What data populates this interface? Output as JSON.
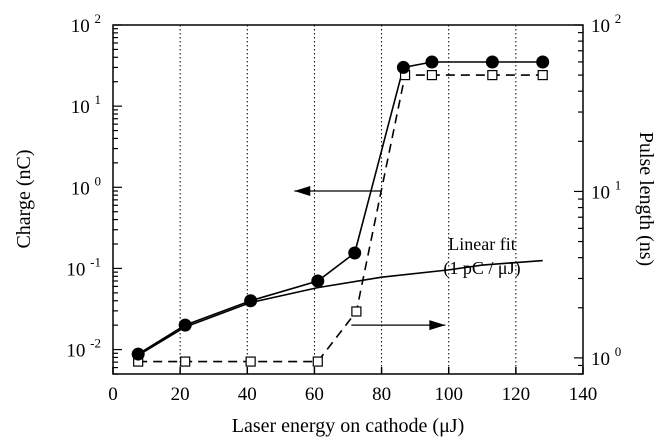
{
  "chart_data": {
    "type": "scatter",
    "title": "",
    "xlabel": "Laser energy on cathode (μJ)",
    "ylabel": "Charge (nC)",
    "y2label": "Pulse length (ns)",
    "xlim": [
      0,
      140
    ],
    "ylim": [
      0.005,
      100
    ],
    "yscale": "log",
    "y2lim": [
      0.8,
      100
    ],
    "y2scale": "log",
    "grid": "vertical dotted lines at x = 20, 40, 60, 80, 100, 120",
    "xticks": [
      "0",
      "20",
      "40",
      "60",
      "80",
      "100",
      "120",
      "140"
    ],
    "yticks": [
      {
        "base": "10",
        "exp": "-2"
      },
      {
        "base": "10",
        "exp": "-1"
      },
      {
        "base": "10",
        "exp": "0"
      },
      {
        "base": "10",
        "exp": "1"
      },
      {
        "base": "10",
        "exp": "2"
      }
    ],
    "y2ticks": [
      {
        "base": "10",
        "exp": "0"
      },
      {
        "base": "10",
        "exp": "1"
      },
      {
        "base": "10",
        "exp": "2"
      }
    ],
    "series": [
      {
        "axis": "left",
        "marker": "filled-circle",
        "line": "solid",
        "x": [
          7.5,
          21.5,
          41,
          61,
          72,
          86.5,
          95,
          113,
          128
        ],
        "y": [
          0.0088,
          0.02,
          0.04,
          0.07,
          0.155,
          30,
          35,
          35,
          35
        ]
      },
      {
        "axis": "right",
        "marker": "open-square",
        "line": "dashed",
        "x": [
          7.5,
          21.5,
          41,
          61,
          72.5,
          87,
          95,
          113,
          128
        ],
        "y": [
          0.95,
          0.95,
          0.95,
          0.95,
          1.9,
          50,
          50,
          50,
          50
        ]
      },
      {
        "axis": "left",
        "marker": "none",
        "line": "solid",
        "x": [
          7.5,
          21.5,
          41,
          61,
          80,
          100,
          110,
          128
        ],
        "y": [
          0.0085,
          0.019,
          0.038,
          0.058,
          0.078,
          0.096,
          0.11,
          0.125
        ]
      }
    ],
    "annotations": {
      "fit_line1": "Linear fit",
      "fit_line2": "(1 pC / μJ)"
    },
    "arrows": [
      {
        "from_x": 80,
        "from_y": 0.9,
        "to_x": 54,
        "to_y": 0.9,
        "direction": "left",
        "meaning": "circles use left axis"
      },
      {
        "from_x": 71,
        "from_y": 0.02,
        "to_x": 99,
        "to_y": 0.02,
        "direction": "right",
        "meaning": "squares use right axis"
      }
    ]
  }
}
